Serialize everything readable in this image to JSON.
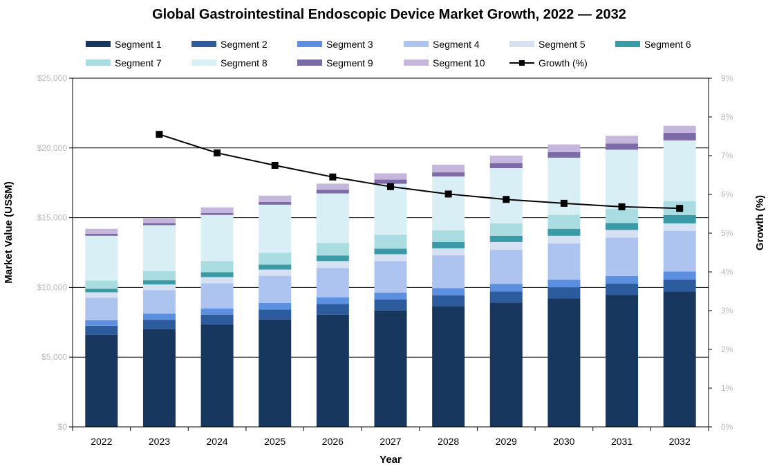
{
  "chart_data": {
    "type": "bar",
    "title": "Global Gastrointestinal Endoscopic Device Market Growth, 2022 — 2032",
    "xlabel": "Year",
    "ylabel": "Market Value (US$M)",
    "y2label": "Growth (%)",
    "categories": [
      "2022",
      "2023",
      "2024",
      "2025",
      "2026",
      "2027",
      "2028",
      "2029",
      "2030",
      "2031",
      "2032"
    ],
    "ylim": [
      0,
      25000
    ],
    "y2lim": [
      0,
      0.09
    ],
    "yticks": [
      "$0",
      "$5,000",
      "$10,000",
      "$15,000",
      "$20,000",
      "$25,000"
    ],
    "y2ticks": [
      "0%",
      "1%",
      "2%",
      "3%",
      "4%",
      "5%",
      "6%",
      "7%",
      "8%",
      "9%"
    ],
    "stacked": true,
    "grid": true,
    "legend_position": "top",
    "series": [
      {
        "name": "Segment 1",
        "color": "#17375e",
        "values": [
          6600,
          7000,
          7350,
          7700,
          8050,
          8350,
          8650,
          8900,
          9200,
          9450,
          9700
        ]
      },
      {
        "name": "Segment 2",
        "color": "#2c5b9e",
        "values": [
          650,
          680,
          700,
          720,
          760,
          780,
          780,
          800,
          800,
          820,
          840
        ]
      },
      {
        "name": "Segment 3",
        "color": "#5b8fdf",
        "values": [
          400,
          430,
          440,
          460,
          480,
          500,
          520,
          550,
          550,
          550,
          600
        ]
      },
      {
        "name": "Segment 4",
        "color": "#aec4f0",
        "values": [
          1600,
          1700,
          1800,
          1950,
          2100,
          2250,
          2350,
          2450,
          2600,
          2750,
          2900
        ]
      },
      {
        "name": "Segment 5",
        "color": "#d7e1f4",
        "values": [
          400,
          400,
          450,
          450,
          500,
          500,
          500,
          550,
          550,
          550,
          550
        ]
      },
      {
        "name": "Segment 6",
        "color": "#3a9aa6",
        "values": [
          250,
          300,
          350,
          350,
          400,
          400,
          450,
          450,
          500,
          500,
          600
        ]
      },
      {
        "name": "Segment 7",
        "color": "#a9dde2",
        "values": [
          600,
          650,
          800,
          850,
          900,
          1000,
          850,
          900,
          1000,
          1000,
          1000
        ]
      },
      {
        "name": "Segment 8",
        "color": "#d8eff6",
        "values": [
          3200,
          3300,
          3300,
          3450,
          3550,
          3650,
          3850,
          3950,
          4100,
          4250,
          4350
        ]
      },
      {
        "name": "Segment 9",
        "color": "#7d6ba8",
        "values": [
          150,
          150,
          150,
          200,
          250,
          300,
          300,
          350,
          400,
          450,
          550
        ]
      },
      {
        "name": "Segment 10",
        "color": "#c5b7dc",
        "values": [
          350,
          350,
          400,
          450,
          450,
          450,
          550,
          550,
          550,
          550,
          500
        ]
      }
    ],
    "line_series": {
      "name": "Growth (%)",
      "color": "#000000",
      "axis": "right",
      "values": [
        null,
        0.0755,
        0.0707,
        0.0675,
        0.0645,
        0.062,
        0.0601,
        0.0587,
        0.0577,
        0.0568,
        0.0564
      ]
    }
  }
}
